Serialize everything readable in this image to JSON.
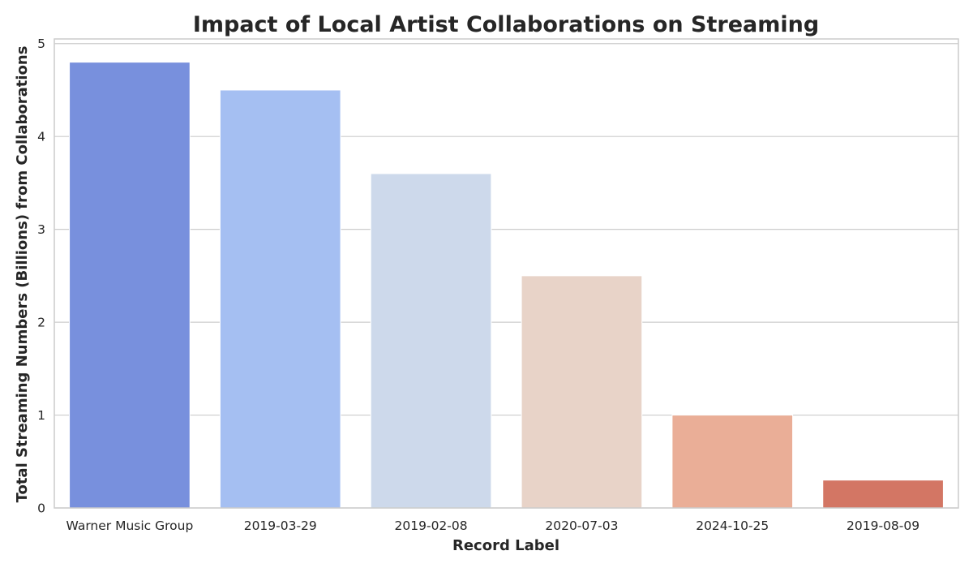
{
  "chart_data": {
    "type": "bar",
    "title": "Impact of Local Artist Collaborations on Streaming",
    "xlabel": "Record Label",
    "ylabel": "Total Streaming Numbers (Billions) from Collaborations",
    "categories": [
      "Warner Music Group",
      "2019-03-29",
      "2019-02-08",
      "2020-07-03",
      "2024-10-25",
      "2019-08-09"
    ],
    "values": [
      4.8,
      4.5,
      3.6,
      2.5,
      1.0,
      0.3
    ],
    "colors": [
      "#7890dd",
      "#a5bff2",
      "#cdd9eb",
      "#e8d3c8",
      "#eaae97",
      "#d37664"
    ],
    "ylim": [
      0,
      5.05
    ],
    "yticks": [
      0,
      1,
      2,
      3,
      4,
      5
    ],
    "grid": true,
    "legend": "none"
  }
}
